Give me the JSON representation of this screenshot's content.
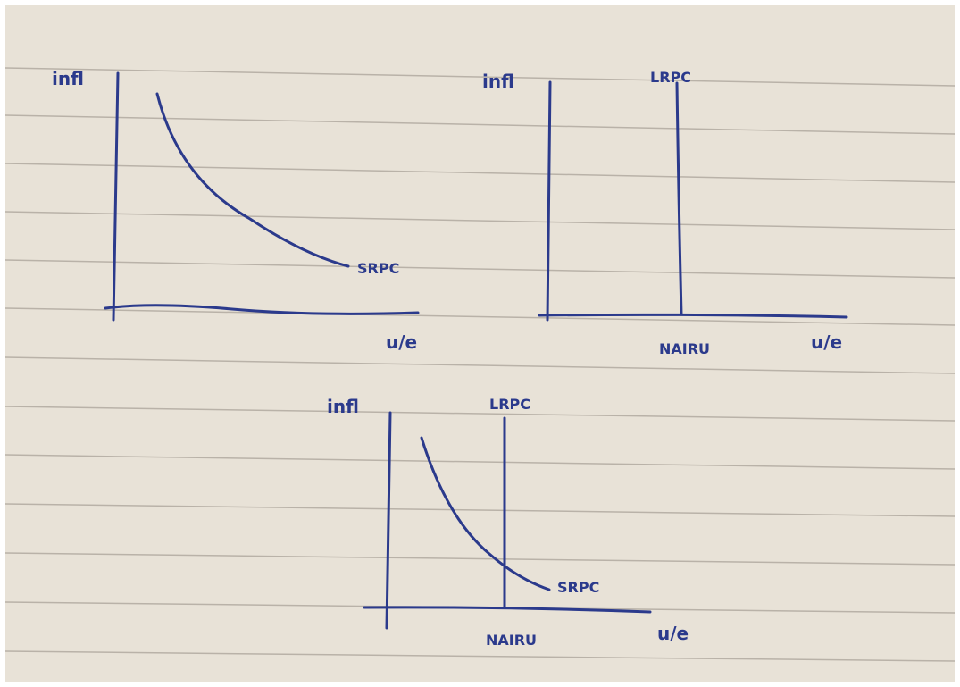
{
  "diagrams": [
    {
      "y_label": "infl",
      "x_label": "u/e",
      "curve_label": "SRPC"
    },
    {
      "y_label": "infl",
      "line_label": "LRPC",
      "x_tick": "NAIRU",
      "x_label": "u/e"
    },
    {
      "y_label": "infl",
      "line_label": "LRPC",
      "curve_label": "SRPC",
      "x_tick": "NAIRU",
      "x_label": "u/e"
    }
  ]
}
